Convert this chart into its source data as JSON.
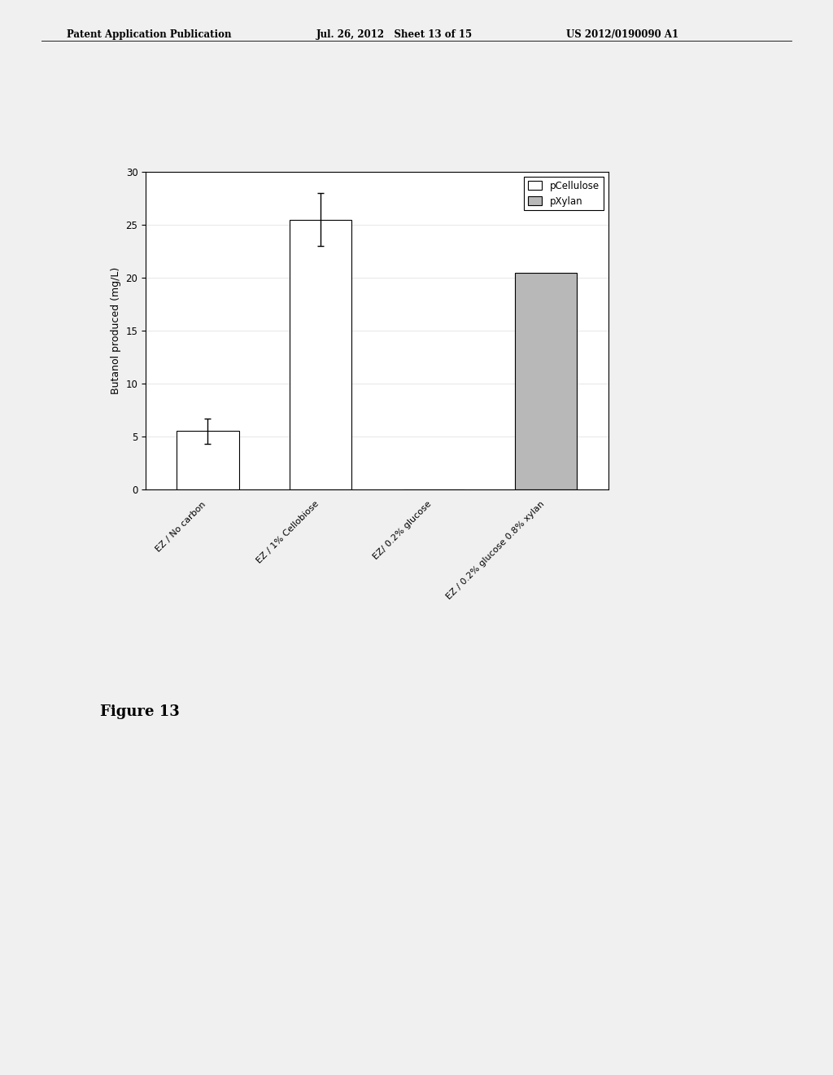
{
  "categories": [
    "EZ / No carbon",
    "EZ / 1% Cellobiose",
    "EZ/ 0.2% glucose",
    "EZ / 0.2% glucose 0.8% xylan"
  ],
  "bar_values": [
    5.5,
    25.5,
    0,
    20.5
  ],
  "bar_errors": [
    1.2,
    2.5,
    0,
    0
  ],
  "bar_colors": [
    "#ffffff",
    "#ffffff",
    "#ffffff",
    "#b8b8b8"
  ],
  "bar_edge_colors": [
    "#000000",
    "#000000",
    "#000000",
    "#000000"
  ],
  "bar_hatches": [
    "",
    "",
    "",
    ""
  ],
  "legend_labels": [
    "pCellulose",
    "pXylan"
  ],
  "legend_colors": [
    "#ffffff",
    "#b8b8b8"
  ],
  "legend_hatches": [
    "",
    ""
  ],
  "ylabel": "Butanol produced (mg/L)",
  "ylim": [
    0,
    30
  ],
  "yticks": [
    0,
    5,
    10,
    15,
    20,
    25,
    30
  ],
  "figure_caption": "Figure 13",
  "header_left": "Patent Application Publication",
  "header_center": "Jul. 26, 2012   Sheet 13 of 15",
  "header_right": "US 2012/0190090 A1",
  "background_color": "#f0f0f0",
  "bar_width": 0.55,
  "grid_color": "#dddddd"
}
